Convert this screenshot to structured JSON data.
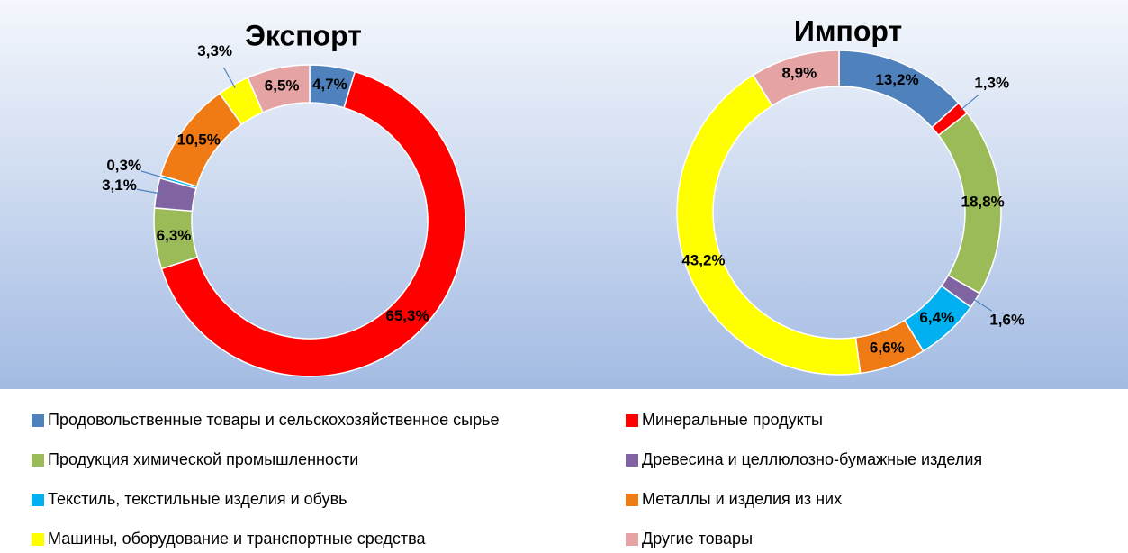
{
  "chart_data": [
    {
      "type": "pie",
      "title": "Экспорт",
      "categories": [
        "Продовольственные товары и сельскохозяйственное сырье",
        "Минеральные продукты",
        "Продукция химической промышленности",
        "Древесина и целлюлозно-бумажные изделия",
        "Текстиль, текстильные изделия и обувь",
        "Металлы и изделия из них",
        "Машины, оборудование и транспортные средства",
        "Другие товары"
      ],
      "values": [
        4.7,
        65.3,
        6.3,
        3.1,
        0.3,
        10.5,
        3.3,
        6.5
      ],
      "value_labels": [
        "4,7%",
        "65,3%",
        "6,3%",
        "3,1%",
        "0,3%",
        "10,5%",
        "3,3%",
        "6,5%"
      ],
      "colors": [
        "#4f81bd",
        "#ff0000",
        "#9bbb59",
        "#8064a2",
        "#00b0f0",
        "#f07a14",
        "#ffff00",
        "#e6a3a3"
      ]
    },
    {
      "type": "pie",
      "title": "Импорт",
      "categories": [
        "Продовольственные товары и сельскохозяйственное сырье",
        "Минеральные продукты",
        "Продукция химической промышленности",
        "Древесина и целлюлозно-бумажные изделия",
        "Текстиль, текстильные изделия и обувь",
        "Металлы и изделия из них",
        "Машины, оборудование и транспортные средства",
        "Другие товары"
      ],
      "values": [
        13.2,
        1.3,
        18.8,
        1.6,
        6.4,
        6.6,
        43.2,
        8.9
      ],
      "value_labels": [
        "13,2%",
        "1,3%",
        "18,8%",
        "1,6%",
        "6,4%",
        "6,6%",
        "43,2%",
        "8,9%"
      ],
      "colors": [
        "#4f81bd",
        "#ff0000",
        "#9bbb59",
        "#8064a2",
        "#00b0f0",
        "#f07a14",
        "#ffff00",
        "#e6a3a3"
      ]
    }
  ]
}
